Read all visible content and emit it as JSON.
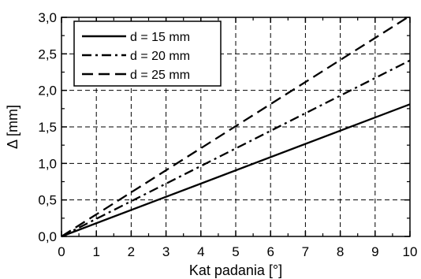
{
  "chart_data": {
    "type": "line",
    "xlabel": "Kat padania [°]",
    "ylabel": "Δ [mm]",
    "xlim": [
      0,
      10
    ],
    "ylim": [
      0,
      3.0
    ],
    "x_ticks": [
      "0",
      "1",
      "2",
      "3",
      "4",
      "5",
      "6",
      "7",
      "8",
      "9",
      "10"
    ],
    "y_ticks": [
      "0,0",
      "0,5",
      "1,0",
      "1,5",
      "2,0",
      "2,5",
      "3,0"
    ],
    "grid": true,
    "legend_position": "top-left",
    "series": [
      {
        "name": "d = 15 mm",
        "style": "solid",
        "x": [
          0,
          10
        ],
        "y": [
          0,
          1.81
        ]
      },
      {
        "name": "d = 20 mm",
        "style": "dash-dot",
        "x": [
          0,
          10
        ],
        "y": [
          0,
          2.41
        ]
      },
      {
        "name": "d = 25 mm",
        "style": "dashed",
        "x": [
          0,
          10
        ],
        "y": [
          0,
          3.02
        ]
      }
    ]
  }
}
